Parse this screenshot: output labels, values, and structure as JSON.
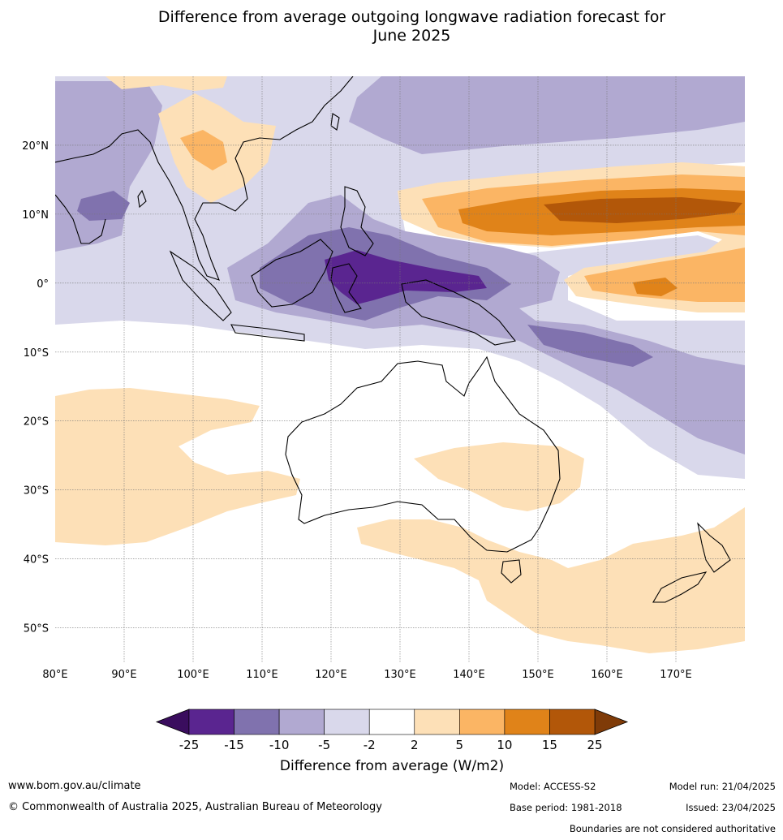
{
  "title": {
    "line1": "Difference from average outgoing longwave radiation forecast for",
    "line2": "June 2025"
  },
  "map": {
    "lon_range": [
      80,
      180
    ],
    "lat_range": [
      -55,
      30
    ],
    "lat_ticks": [
      {
        "value": 20,
        "label": "20°N"
      },
      {
        "value": 10,
        "label": "10°N"
      },
      {
        "value": 0,
        "label": "0°"
      },
      {
        "value": -10,
        "label": "10°S"
      },
      {
        "value": -20,
        "label": "20°S"
      },
      {
        "value": -30,
        "label": "30°S"
      },
      {
        "value": -40,
        "label": "40°S"
      },
      {
        "value": -50,
        "label": "50°S"
      }
    ],
    "lon_ticks": [
      {
        "value": 80,
        "label": "80°E"
      },
      {
        "value": 90,
        "label": "90°E"
      },
      {
        "value": 100,
        "label": "100°E"
      },
      {
        "value": 110,
        "label": "110°E"
      },
      {
        "value": 120,
        "label": "120°E"
      },
      {
        "value": 130,
        "label": "130°E"
      },
      {
        "value": 140,
        "label": "140°E"
      },
      {
        "value": 150,
        "label": "150°E"
      },
      {
        "value": 160,
        "label": "160°E"
      },
      {
        "value": 170,
        "label": "170°E"
      }
    ]
  },
  "colorbar": {
    "label": "Difference from average (W/m2)",
    "ticks": [
      "-25",
      "-15",
      "-10",
      "-5",
      "-2",
      "2",
      "5",
      "10",
      "15",
      "25"
    ],
    "colors": [
      "#5a2590",
      "#8072ae",
      "#b1a9d1",
      "#d9d8eb",
      "#ffffff",
      "#fde0b7",
      "#fbb564",
      "#e08319",
      "#b25709"
    ],
    "low_extend_color": "#3a0d5e",
    "high_extend_color": "#7f3b08"
  },
  "footer": {
    "website": "www.bom.gov.au/climate",
    "copyright": "© Commonwealth of Australia 2025, Australian Bureau of Meteorology",
    "model": "Model: ACCESS-S2",
    "base_period": "Base period: 1981-2018",
    "model_run": "Model run: 21/04/2025",
    "issued": "Issued: 23/04/2025",
    "disclaimer": "Boundaries are not considered authoritative"
  }
}
